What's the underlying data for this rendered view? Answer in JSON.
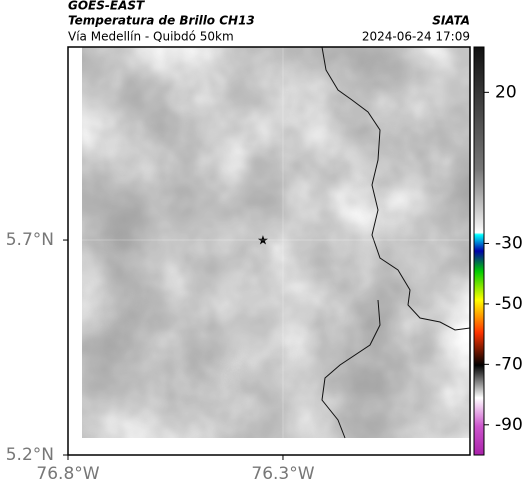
{
  "chart_data": {
    "type": "map",
    "header": {
      "satellite": "GOES-EAST",
      "product": "Temperatura de Brillo CH13",
      "route": "Vía Medellín - Quibdó 50km",
      "source": "SIATA",
      "datetime": "2024-06-24 17:09"
    },
    "xlim": [
      -76.8,
      -75.865
    ],
    "xticks": [
      {
        "value": -76.8,
        "label": "76.8°W"
      },
      {
        "value": -76.3,
        "label": "76.3°W"
      }
    ],
    "ylim": [
      5.2,
      6.149
    ],
    "yticks": [
      {
        "value": 5.2,
        "label": "5.2°N"
      },
      {
        "value": 5.7,
        "label": "5.7°N"
      }
    ],
    "colorbar": {
      "lim": [
        35,
        -100
      ],
      "ticks": [
        20,
        -30,
        -50,
        -70,
        -90
      ]
    },
    "grid": true
  }
}
